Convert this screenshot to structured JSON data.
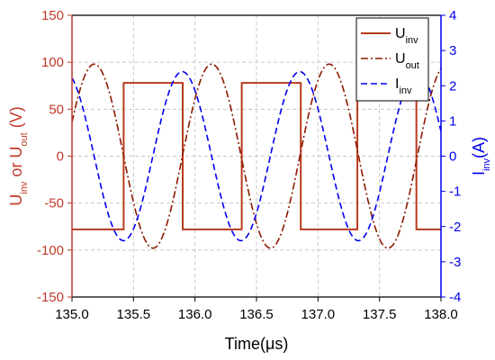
{
  "chart_data": {
    "type": "line",
    "x_axis": {
      "label": "Time(μs)",
      "range": [
        135.0,
        138.0
      ],
      "ticks": [
        "135.0",
        "135.5",
        "136.0",
        "136.5",
        "137.0",
        "137.5",
        "138.0"
      ]
    },
    "y_left": {
      "label_parts": [
        {
          "text": "U",
          "sub": "inv"
        },
        {
          "text": " or U",
          "sub": "out"
        },
        {
          "text": " (V)",
          "sub": ""
        }
      ],
      "range": [
        -150,
        150
      ],
      "ticks": [
        "150",
        "100",
        "50",
        "0",
        "-50",
        "-100",
        "-150"
      ],
      "color": "#c0392b"
    },
    "y_right": {
      "label_parts": [
        {
          "text": "I",
          "sub": "inv"
        },
        {
          "text": "(A)",
          "sub": ""
        }
      ],
      "range": [
        -4,
        4
      ],
      "ticks": [
        "4",
        "3",
        "2",
        "1",
        "0",
        "-1",
        "-2",
        "-3",
        "-4"
      ],
      "color": "#0000ee"
    },
    "grid": true,
    "legend_position": "top-right",
    "series": [
      {
        "name": "Uinv",
        "legend_text": "U",
        "legend_sub": "inv",
        "axis": "left",
        "style": "solid",
        "color": "#b83a1c",
        "x": [
          135.0,
          135.1,
          135.1,
          135.42,
          135.42,
          135.9,
          135.9,
          136.38,
          136.38,
          136.86,
          136.86,
          137.32,
          137.32,
          137.8,
          137.8,
          138.0
        ],
        "y": [
          -78,
          -78,
          -78,
          -78,
          78,
          78,
          -78,
          -78,
          78,
          78,
          -78,
          -78,
          78,
          78,
          -78,
          -78
        ]
      },
      {
        "name": "Uout",
        "legend_text": "U",
        "legend_sub": "out",
        "axis": "left",
        "style": "dashdot",
        "color": "#8b1a00",
        "wave": {
          "amplitude": 98,
          "period": 0.955,
          "zero_crossing_down": 135.42,
          "x_start": 135.0,
          "x_end": 138.0
        }
      },
      {
        "name": "Iinv",
        "legend_text": "I",
        "legend_sub": "inv",
        "axis": "right",
        "style": "dashed",
        "color": "#0000ee",
        "wave": {
          "amplitude": 2.4,
          "period": 0.955,
          "zero_crossing_down": 135.18,
          "x_start": 135.0,
          "x_end": 138.0
        }
      }
    ]
  }
}
